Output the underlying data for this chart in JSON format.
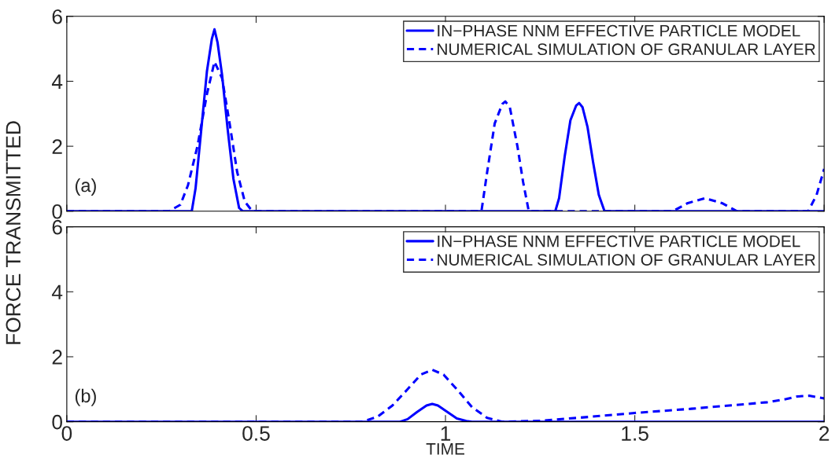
{
  "chart_data": [
    {
      "type": "line",
      "ylabel": "FORCE TRANSMITTED",
      "xlim": [
        0,
        2
      ],
      "ylim": [
        0,
        6
      ],
      "xticks": [
        0,
        0.5,
        1,
        1.5,
        2
      ],
      "yticks": [
        0,
        2,
        4,
        6
      ],
      "tick_labels": "y",
      "legend": "top right",
      "grid": false,
      "annotations": [
        "(a)"
      ],
      "series": [
        {
          "name": "IN−PHASE NNM EFFECTIVE PARTICLE MODEL",
          "color": "#0000ff",
          "line_style": "solid",
          "x": [
            0,
            0.33,
            0.34,
            0.355,
            0.37,
            0.383,
            0.39,
            0.398,
            0.41,
            0.425,
            0.44,
            0.455,
            0.465,
            1.29,
            1.3,
            1.315,
            1.33,
            1.345,
            1.353,
            1.362,
            1.375,
            1.39,
            1.405,
            1.42,
            2
          ],
          "values": [
            0,
            0,
            0.7,
            2.5,
            4.3,
            5.3,
            5.6,
            5.2,
            4.2,
            2.5,
            1.0,
            0.1,
            0,
            0,
            0.4,
            1.7,
            2.8,
            3.25,
            3.33,
            3.2,
            2.6,
            1.5,
            0.5,
            0,
            0
          ]
        },
        {
          "name": "NUMERICAL SIMULATION OF GRANULAR LAYER",
          "color": "#0000ff",
          "line_style": "dashed",
          "x": [
            0,
            0.27,
            0.3,
            0.32,
            0.345,
            0.37,
            0.39,
            0.41,
            0.43,
            0.45,
            0.47,
            0.49,
            1.095,
            1.11,
            1.13,
            1.15,
            1.158,
            1.17,
            1.19,
            1.205,
            1.22,
            1.6,
            1.64,
            1.685,
            1.73,
            1.77,
            1.958,
            1.98,
            2
          ],
          "values": [
            0,
            0,
            0.2,
            0.8,
            2.0,
            3.6,
            4.6,
            4.1,
            2.7,
            1.2,
            0.3,
            0,
            0,
            1.2,
            2.7,
            3.3,
            3.38,
            3.2,
            2.0,
            0.9,
            0,
            0,
            0.25,
            0.4,
            0.25,
            0,
            0,
            0.5,
            1.3
          ]
        }
      ]
    },
    {
      "type": "line",
      "xlabel": "TIME",
      "xlim": [
        0,
        2
      ],
      "ylim": [
        0,
        6
      ],
      "xticks": [
        0,
        0.5,
        1,
        1.5,
        2
      ],
      "yticks": [
        0,
        2,
        4,
        6
      ],
      "legend": "top right",
      "grid": false,
      "annotations": [
        "(b)"
      ],
      "series": [
        {
          "name": "IN−PHASE NNM EFFECTIVE PARTICLE MODEL",
          "color": "#0000ff",
          "line_style": "solid",
          "x": [
            0,
            0.88,
            0.9,
            0.925,
            0.95,
            0.965,
            0.98,
            1.005,
            1.03,
            1.055,
            1.07,
            2
          ],
          "values": [
            0,
            0,
            0.08,
            0.3,
            0.5,
            0.55,
            0.5,
            0.3,
            0.1,
            0.02,
            0,
            0
          ]
        },
        {
          "name": "NUMERICAL SIMULATION OF GRANULAR LAYER",
          "color": "#0000ff",
          "line_style": "dashed",
          "x": [
            0,
            0.78,
            0.82,
            0.86,
            0.9,
            0.935,
            0.965,
            0.995,
            1.03,
            1.07,
            1.11,
            1.15,
            1.25,
            1.35,
            1.5,
            1.65,
            1.75,
            1.85,
            1.9,
            1.93,
            1.96,
            2
          ],
          "values": [
            0,
            0,
            0.15,
            0.5,
            1.0,
            1.45,
            1.6,
            1.45,
            1.0,
            0.45,
            0.12,
            0,
            0.03,
            0.12,
            0.27,
            0.4,
            0.5,
            0.6,
            0.7,
            0.78,
            0.8,
            0.72
          ]
        }
      ]
    }
  ]
}
